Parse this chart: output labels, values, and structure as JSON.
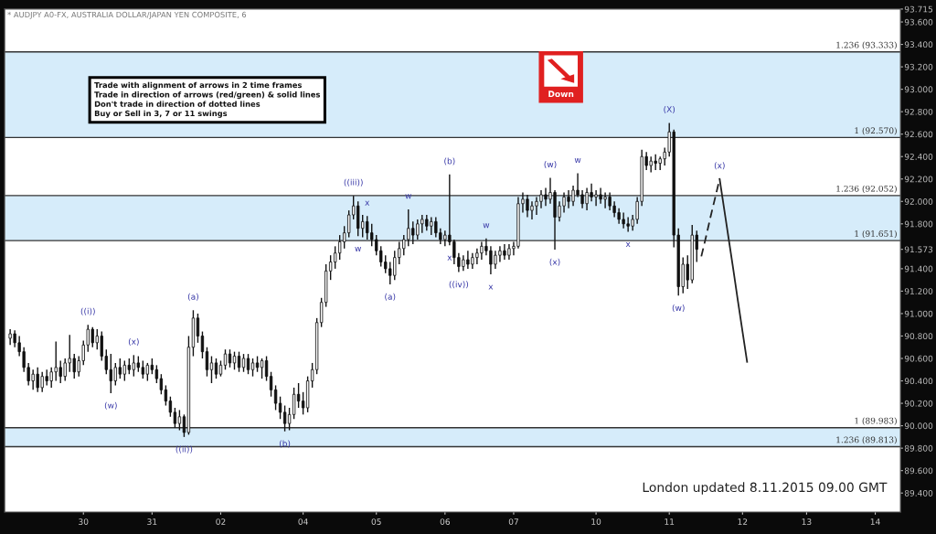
{
  "chart_data": {
    "type": "candlestick",
    "title": "* AUDJPY A0-FX, AUSTRALIA DOLLAR/JAPAN YEN COMPOSITE, 6",
    "categories": [
      null,
      null,
      null,
      null,
      null,
      null,
      null,
      null,
      null,
      null,
      null,
      null,
      null,
      null,
      null,
      null,
      "30",
      null,
      null,
      null,
      null,
      null,
      null,
      null,
      null,
      null,
      null,
      null,
      null,
      null,
      null,
      "31",
      null,
      null,
      null,
      null,
      null,
      null,
      null,
      null,
      null,
      null,
      null,
      null,
      null,
      null,
      "02",
      null,
      null,
      null,
      null,
      null,
      null,
      null,
      null,
      null,
      null,
      null,
      null,
      null,
      null,
      null,
      null,
      null,
      "04",
      null,
      null,
      null,
      null,
      null,
      null,
      null,
      null,
      null,
      null,
      null,
      null,
      null,
      null,
      null,
      "05",
      null,
      null,
      null,
      null,
      null,
      null,
      null,
      null,
      null,
      null,
      null,
      null,
      null,
      null,
      "06",
      null,
      null,
      null,
      null,
      null,
      null,
      null,
      null,
      null,
      null,
      null,
      null,
      null,
      null,
      "07",
      null,
      null,
      null,
      null,
      null,
      null,
      null,
      null,
      null,
      null,
      null,
      null,
      null,
      null,
      null,
      null,
      null,
      "10",
      null,
      null,
      null,
      null,
      null,
      null,
      null,
      null,
      null,
      null,
      null,
      null,
      null,
      null,
      null,
      "11",
      null,
      null,
      null,
      null,
      null,
      null,
      null,
      null,
      null,
      null,
      null,
      null,
      null,
      null,
      null,
      "12",
      null,
      null,
      null,
      null,
      null,
      null,
      null,
      null,
      null,
      null,
      null,
      null,
      null,
      "13",
      null,
      null,
      null,
      null,
      null,
      null,
      null,
      null,
      null,
      null,
      null,
      null,
      null,
      null,
      "14",
      null,
      null,
      null,
      null,
      null
    ],
    "ohlc": [
      [
        90.78,
        90.86,
        90.72,
        90.82
      ],
      [
        90.82,
        90.85,
        90.7,
        90.74
      ],
      [
        90.74,
        90.8,
        90.62,
        90.66
      ],
      [
        90.66,
        90.7,
        90.48,
        90.52
      ],
      [
        90.52,
        90.56,
        90.36,
        90.4
      ],
      [
        90.4,
        90.5,
        90.32,
        90.46
      ],
      [
        90.46,
        90.52,
        90.3,
        90.34
      ],
      [
        90.34,
        90.48,
        90.3,
        90.44
      ],
      [
        90.44,
        90.5,
        90.36,
        90.4
      ],
      [
        90.4,
        90.52,
        90.34,
        90.48
      ],
      [
        90.48,
        90.75,
        90.4,
        90.52
      ],
      [
        90.52,
        90.58,
        90.38,
        90.44
      ],
      [
        90.44,
        90.6,
        90.4,
        90.56
      ],
      [
        90.56,
        90.81,
        90.48,
        90.6
      ],
      [
        90.6,
        90.64,
        90.42,
        90.48
      ],
      [
        90.48,
        90.62,
        90.44,
        90.58
      ],
      [
        90.58,
        90.76,
        90.54,
        90.72
      ],
      [
        90.72,
        90.9,
        90.66,
        90.86
      ],
      [
        90.86,
        90.88,
        90.7,
        90.74
      ],
      [
        90.74,
        90.86,
        90.68,
        90.8
      ],
      [
        90.8,
        90.84,
        90.58,
        90.62
      ],
      [
        90.62,
        90.68,
        90.46,
        90.5
      ],
      [
        90.5,
        90.64,
        90.29,
        90.4
      ],
      [
        90.4,
        90.56,
        90.36,
        90.52
      ],
      [
        90.52,
        90.6,
        90.42,
        90.46
      ],
      [
        90.46,
        90.58,
        90.4,
        90.54
      ],
      [
        90.54,
        90.6,
        90.46,
        90.5
      ],
      [
        90.5,
        90.63,
        90.44,
        90.56
      ],
      [
        90.56,
        90.62,
        90.48,
        90.52
      ],
      [
        90.52,
        90.58,
        90.42,
        90.46
      ],
      [
        90.46,
        90.56,
        90.4,
        90.54
      ],
      [
        90.54,
        90.6,
        90.46,
        90.5
      ],
      [
        90.5,
        90.54,
        90.38,
        90.42
      ],
      [
        90.42,
        90.46,
        90.28,
        90.32
      ],
      [
        90.32,
        90.36,
        90.18,
        90.22
      ],
      [
        90.22,
        90.26,
        90.08,
        90.12
      ],
      [
        90.12,
        90.16,
        89.98,
        90.02
      ],
      [
        90.02,
        90.14,
        89.96,
        90.08
      ],
      [
        90.08,
        90.1,
        89.9,
        89.94
      ],
      [
        89.94,
        90.8,
        89.92,
        90.7
      ],
      [
        90.7,
        91.03,
        90.62,
        90.96
      ],
      [
        90.96,
        91.0,
        90.74,
        90.8
      ],
      [
        90.8,
        90.84,
        90.6,
        90.66
      ],
      [
        90.66,
        90.7,
        90.44,
        90.5
      ],
      [
        90.5,
        90.62,
        90.38,
        90.56
      ],
      [
        90.56,
        90.6,
        90.42,
        90.46
      ],
      [
        90.46,
        90.58,
        90.44,
        90.54
      ],
      [
        90.54,
        90.68,
        90.5,
        90.64
      ],
      [
        90.64,
        90.68,
        90.52,
        90.56
      ],
      [
        90.56,
        90.66,
        90.5,
        90.62
      ],
      [
        90.62,
        90.66,
        90.48,
        90.52
      ],
      [
        90.52,
        90.64,
        90.48,
        90.6
      ],
      [
        90.6,
        90.64,
        90.46,
        90.5
      ],
      [
        90.5,
        90.6,
        90.44,
        90.56
      ],
      [
        90.56,
        90.62,
        90.48,
        90.52
      ],
      [
        90.52,
        90.6,
        90.42,
        90.58
      ],
      [
        90.58,
        90.62,
        90.4,
        90.44
      ],
      [
        90.44,
        90.48,
        90.26,
        90.32
      ],
      [
        90.32,
        90.36,
        90.14,
        90.2
      ],
      [
        90.2,
        90.26,
        90.06,
        90.12
      ],
      [
        90.12,
        90.18,
        89.95,
        90.02
      ],
      [
        90.02,
        90.16,
        89.96,
        90.1
      ],
      [
        90.1,
        90.34,
        90.06,
        90.28
      ],
      [
        90.28,
        90.38,
        90.16,
        90.22
      ],
      [
        90.22,
        90.3,
        90.1,
        90.16
      ],
      [
        90.16,
        90.44,
        90.12,
        90.4
      ],
      [
        90.4,
        90.56,
        90.34,
        90.5
      ],
      [
        90.5,
        90.96,
        90.46,
        90.92
      ],
      [
        90.92,
        91.14,
        90.88,
        91.1
      ],
      [
        91.1,
        91.44,
        91.06,
        91.38
      ],
      [
        91.38,
        91.52,
        91.3,
        91.46
      ],
      [
        91.46,
        91.6,
        91.4,
        91.54
      ],
      [
        91.54,
        91.7,
        91.48,
        91.64
      ],
      [
        91.64,
        91.78,
        91.58,
        91.72
      ],
      [
        91.72,
        91.92,
        91.68,
        91.88
      ],
      [
        91.88,
        92.05,
        91.84,
        91.96
      ],
      [
        91.96,
        92.0,
        91.69,
        91.76
      ],
      [
        91.76,
        91.88,
        91.68,
        91.82
      ],
      [
        91.82,
        91.87,
        91.66,
        91.72
      ],
      [
        91.72,
        91.8,
        91.6,
        91.66
      ],
      [
        91.66,
        91.7,
        91.52,
        91.56
      ],
      [
        91.56,
        91.6,
        91.42,
        91.46
      ],
      [
        91.46,
        91.52,
        91.36,
        91.4
      ],
      [
        91.4,
        91.46,
        91.26,
        91.34
      ],
      [
        91.34,
        91.56,
        91.3,
        91.5
      ],
      [
        91.5,
        91.64,
        91.44,
        91.58
      ],
      [
        91.58,
        91.7,
        91.52,
        91.66
      ],
      [
        91.66,
        91.93,
        91.6,
        91.76
      ],
      [
        91.76,
        91.82,
        91.62,
        91.7
      ],
      [
        91.7,
        91.84,
        91.66,
        91.8
      ],
      [
        91.8,
        91.88,
        91.72,
        91.84
      ],
      [
        91.84,
        91.88,
        91.74,
        91.78
      ],
      [
        91.78,
        91.86,
        91.7,
        91.82
      ],
      [
        91.82,
        91.86,
        91.68,
        91.72
      ],
      [
        91.72,
        91.76,
        91.62,
        91.66
      ],
      [
        91.66,
        91.74,
        91.6,
        91.7
      ],
      [
        91.7,
        92.24,
        91.61,
        91.64
      ],
      [
        91.64,
        91.66,
        91.44,
        91.5
      ],
      [
        91.5,
        91.54,
        91.37,
        91.42
      ],
      [
        91.42,
        91.52,
        91.38,
        91.48
      ],
      [
        91.48,
        91.56,
        91.4,
        91.44
      ],
      [
        91.44,
        91.54,
        91.4,
        91.5
      ],
      [
        91.5,
        91.58,
        91.44,
        91.54
      ],
      [
        91.54,
        91.64,
        91.48,
        91.6
      ],
      [
        91.6,
        91.67,
        91.52,
        91.56
      ],
      [
        91.56,
        91.6,
        91.35,
        91.44
      ],
      [
        91.44,
        91.56,
        91.4,
        91.52
      ],
      [
        91.52,
        91.6,
        91.46,
        91.56
      ],
      [
        91.56,
        91.62,
        91.48,
        91.52
      ],
      [
        91.52,
        91.62,
        91.48,
        91.58
      ],
      [
        91.58,
        91.64,
        91.52,
        91.6
      ],
      [
        91.6,
        92.04,
        91.58,
        91.98
      ],
      [
        91.98,
        92.08,
        91.9,
        92.02
      ],
      [
        92.02,
        92.06,
        91.86,
        91.92
      ],
      [
        91.92,
        92.0,
        91.84,
        91.96
      ],
      [
        91.96,
        92.04,
        91.88,
        92.0
      ],
      [
        92.0,
        92.1,
        91.94,
        92.06
      ],
      [
        92.06,
        92.12,
        91.96,
        92.02
      ],
      [
        92.02,
        92.21,
        91.98,
        92.08
      ],
      [
        92.08,
        92.1,
        91.57,
        91.86
      ],
      [
        91.86,
        92.0,
        91.82,
        91.96
      ],
      [
        91.96,
        92.08,
        91.9,
        92.04
      ],
      [
        92.04,
        92.1,
        91.94,
        92.0
      ],
      [
        92.0,
        92.14,
        91.96,
        92.1
      ],
      [
        92.1,
        92.25,
        92.04,
        92.06
      ],
      [
        92.06,
        92.1,
        91.94,
        91.98
      ],
      [
        91.98,
        92.12,
        91.92,
        92.08
      ],
      [
        92.08,
        92.16,
        92.0,
        92.04
      ],
      [
        92.04,
        92.1,
        91.96,
        92.06
      ],
      [
        92.06,
        92.12,
        91.98,
        92.02
      ],
      [
        92.02,
        92.08,
        91.94,
        92.04
      ],
      [
        92.04,
        92.08,
        91.92,
        91.96
      ],
      [
        91.96,
        92.0,
        91.86,
        91.9
      ],
      [
        91.9,
        91.94,
        91.8,
        91.84
      ],
      [
        91.84,
        91.9,
        91.76,
        91.8
      ],
      [
        91.8,
        91.86,
        91.73,
        91.78
      ],
      [
        91.78,
        91.88,
        91.74,
        91.84
      ],
      [
        91.84,
        92.04,
        91.8,
        92.0
      ],
      [
        92.0,
        92.46,
        91.96,
        92.4
      ],
      [
        92.4,
        92.44,
        92.28,
        92.32
      ],
      [
        92.32,
        92.4,
        92.26,
        92.36
      ],
      [
        92.36,
        92.42,
        92.28,
        92.34
      ],
      [
        92.34,
        92.4,
        92.28,
        92.38
      ],
      [
        92.38,
        92.48,
        92.32,
        92.44
      ],
      [
        92.44,
        92.7,
        92.4,
        92.62
      ],
      [
        92.62,
        92.64,
        91.59,
        91.7
      ],
      [
        91.7,
        91.76,
        91.16,
        91.24
      ],
      [
        91.24,
        91.5,
        91.18,
        91.44
      ],
      [
        91.44,
        91.52,
        91.22,
        91.3
      ],
      [
        91.3,
        91.79,
        91.27,
        91.7
      ],
      [
        91.7,
        91.74,
        91.46,
        91.573
      ],
      null,
      null,
      null,
      null,
      null,
      null,
      null,
      null,
      null,
      null,
      null,
      null,
      null,
      null,
      null,
      null,
      null,
      null,
      null,
      null,
      null,
      null,
      null,
      null,
      null,
      null,
      null,
      null,
      null,
      null,
      null,
      null,
      null,
      null,
      null,
      null,
      null,
      null,
      null,
      null,
      null,
      null,
      null,
      null
    ],
    "color": "#111111",
    "series": [
      {
        "type": "line",
        "color": "#222222",
        "line_style": "dashed",
        "values": [
          null,
          null,
          null,
          null,
          null,
          null,
          null,
          null,
          null,
          null,
          null,
          null,
          null,
          null,
          null,
          null,
          null,
          null,
          null,
          null,
          null,
          null,
          null,
          null,
          null,
          null,
          null,
          null,
          null,
          null,
          null,
          null,
          null,
          null,
          null,
          null,
          null,
          null,
          null,
          null,
          null,
          null,
          null,
          null,
          null,
          null,
          null,
          null,
          null,
          null,
          null,
          null,
          null,
          null,
          null,
          null,
          null,
          null,
          null,
          null,
          null,
          null,
          null,
          null,
          null,
          null,
          null,
          null,
          null,
          null,
          null,
          null,
          null,
          null,
          null,
          null,
          null,
          null,
          null,
          null,
          null,
          null,
          null,
          null,
          null,
          null,
          null,
          null,
          null,
          null,
          null,
          null,
          null,
          null,
          null,
          null,
          null,
          null,
          null,
          null,
          null,
          null,
          null,
          null,
          null,
          null,
          null,
          null,
          null,
          null,
          null,
          null,
          null,
          null,
          null,
          null,
          null,
          null,
          null,
          null,
          null,
          null,
          null,
          null,
          null,
          null,
          null,
          null,
          null,
          null,
          null,
          null,
          null,
          null,
          null,
          null,
          null,
          null,
          null,
          null,
          null,
          null,
          null,
          null,
          null,
          null,
          null,
          null,
          null,
          null,
          null,
          91.51,
          91.68,
          91.86,
          92.03,
          92.2,
          null,
          null,
          null,
          null,
          null,
          null,
          null,
          null,
          null,
          null,
          null,
          null,
          null,
          null,
          null,
          null,
          null,
          null,
          null,
          null,
          null,
          null,
          null,
          null,
          null,
          null,
          null,
          null,
          null,
          null,
          null,
          null,
          null,
          null,
          null,
          null,
          null,
          null,
          null
        ]
      },
      {
        "type": "line",
        "color": "#222222",
        "line_style": "solid",
        "values": [
          null,
          null,
          null,
          null,
          null,
          null,
          null,
          null,
          null,
          null,
          null,
          null,
          null,
          null,
          null,
          null,
          null,
          null,
          null,
          null,
          null,
          null,
          null,
          null,
          null,
          null,
          null,
          null,
          null,
          null,
          null,
          null,
          null,
          null,
          null,
          null,
          null,
          null,
          null,
          null,
          null,
          null,
          null,
          null,
          null,
          null,
          null,
          null,
          null,
          null,
          null,
          null,
          null,
          null,
          null,
          null,
          null,
          null,
          null,
          null,
          null,
          null,
          null,
          null,
          null,
          null,
          null,
          null,
          null,
          null,
          null,
          null,
          null,
          null,
          null,
          null,
          null,
          null,
          null,
          null,
          null,
          null,
          null,
          null,
          null,
          null,
          null,
          null,
          null,
          null,
          null,
          null,
          null,
          null,
          null,
          null,
          null,
          null,
          null,
          null,
          null,
          null,
          null,
          null,
          null,
          null,
          null,
          null,
          null,
          null,
          null,
          null,
          null,
          null,
          null,
          null,
          null,
          null,
          null,
          null,
          null,
          null,
          null,
          null,
          null,
          null,
          null,
          null,
          null,
          null,
          null,
          null,
          null,
          null,
          null,
          null,
          null,
          null,
          null,
          null,
          null,
          null,
          null,
          null,
          null,
          null,
          null,
          null,
          null,
          null,
          null,
          null,
          null,
          null,
          null,
          92.2,
          91.93,
          91.66,
          91.39,
          91.11,
          90.84,
          90.57,
          null,
          null,
          null,
          null,
          null,
          null,
          null,
          null,
          null,
          null,
          null,
          null,
          null,
          null,
          null,
          null,
          null,
          null,
          null,
          null,
          null,
          null,
          null,
          null,
          null,
          null,
          null,
          null,
          null,
          null,
          null,
          null,
          null
        ]
      }
    ],
    "ylim": [
      89.23,
      93.715
    ],
    "yticks": [
      {
        "value": 89.4,
        "label": "89.400"
      },
      {
        "value": 89.6,
        "label": "89.600"
      },
      {
        "value": 89.8,
        "label": "89.800"
      },
      {
        "value": 90.0,
        "label": "90.000"
      },
      {
        "value": 90.2,
        "label": "90.200"
      },
      {
        "value": 90.4,
        "label": "90.400"
      },
      {
        "value": 90.6,
        "label": "90.600"
      },
      {
        "value": 90.8,
        "label": "90.800"
      },
      {
        "value": 91.0,
        "label": "91.000"
      },
      {
        "value": 91.2,
        "label": "91.200"
      },
      {
        "value": 91.4,
        "label": "91.400"
      },
      {
        "value": 91.573,
        "label": "91.573"
      },
      {
        "value": 91.8,
        "label": "91.800"
      },
      {
        "value": 92.0,
        "label": "92.000"
      },
      {
        "value": 92.2,
        "label": "92.200"
      },
      {
        "value": 92.4,
        "label": "92.400"
      },
      {
        "value": 92.6,
        "label": "92.600"
      },
      {
        "value": 92.8,
        "label": "92.800"
      },
      {
        "value": 93.0,
        "label": "93.000"
      },
      {
        "value": 93.2,
        "label": "93.200"
      },
      {
        "value": 93.4,
        "label": "93.400"
      },
      {
        "value": 93.6,
        "label": "93.600"
      },
      {
        "value": 93.715,
        "label": "93.715"
      }
    ],
    "ref_lines": [
      {
        "axis": "y",
        "value": 93.333,
        "label": "1.236 (93.333)",
        "color": "#333333"
      },
      {
        "axis": "y",
        "value": 92.57,
        "label": "1 (92.570)",
        "color": "#333333"
      },
      {
        "axis": "y",
        "value": 92.052,
        "label": "1.236 (92.052)",
        "color": "#333333"
      },
      {
        "axis": "y",
        "value": 91.651,
        "label": "1 (91.651)",
        "color": "#333333"
      },
      {
        "axis": "y",
        "value": 89.983,
        "label": "1 (89.983)",
        "color": "#333333"
      },
      {
        "axis": "y",
        "value": 89.813,
        "label": "1.236 (89.813)",
        "color": "#333333"
      }
    ],
    "bands": [
      {
        "axis": "y",
        "from": 92.57,
        "to": 93.333,
        "color": "#d6ecfa"
      },
      {
        "axis": "y",
        "from": 91.651,
        "to": 92.052,
        "color": "#d6ecfa"
      },
      {
        "axis": "y",
        "from": 89.813,
        "to": 89.983,
        "color": "#d6ecfa"
      }
    ],
    "annotations": [
      {
        "text": "((i))",
        "y": 90.9
      },
      {
        "text": "(w)",
        "y": 90.29
      },
      {
        "text": "(x)",
        "y": 90.63
      },
      {
        "text": "((ii))",
        "y": 89.9
      },
      {
        "text": "(a)",
        "y": 91.03
      },
      {
        "text": "(b)",
        "y": 89.95
      },
      {
        "text": "((iii))",
        "y": 92.05
      },
      {
        "text": "w",
        "y": 91.69
      },
      {
        "text": "x",
        "y": 91.87
      },
      {
        "text": "(a)",
        "y": 91.26
      },
      {
        "text": "w",
        "y": 91.93
      },
      {
        "text": "x",
        "y": 91.61
      },
      {
        "text": "(b)",
        "y": 92.24
      },
      {
        "text": "((iv))",
        "y": 91.37
      },
      {
        "text": "w",
        "y": 91.67
      },
      {
        "text": "x",
        "y": 91.35
      },
      {
        "text": "(w)",
        "y": 92.21
      },
      {
        "text": "(x)",
        "y": 91.57
      },
      {
        "text": "w",
        "y": 92.25
      },
      {
        "text": "x",
        "y": 91.73
      },
      {
        "text": "(X)",
        "y": 92.7
      },
      {
        "text": "(w)",
        "y": 91.16
      },
      {
        "text": "(x)",
        "y": 92.2
      },
      "Trade with alignment of arrows in 2 time frames\nTrade in direction of arrows (red/green) & solid lines\nDon't trade in direction of dotted lines\nBuy or Sell in 3, 7 or 11 swings",
      "Down",
      "London updated 8.11.2015 09.00 GMT"
    ],
    "grid": false,
    "legend": false
  }
}
